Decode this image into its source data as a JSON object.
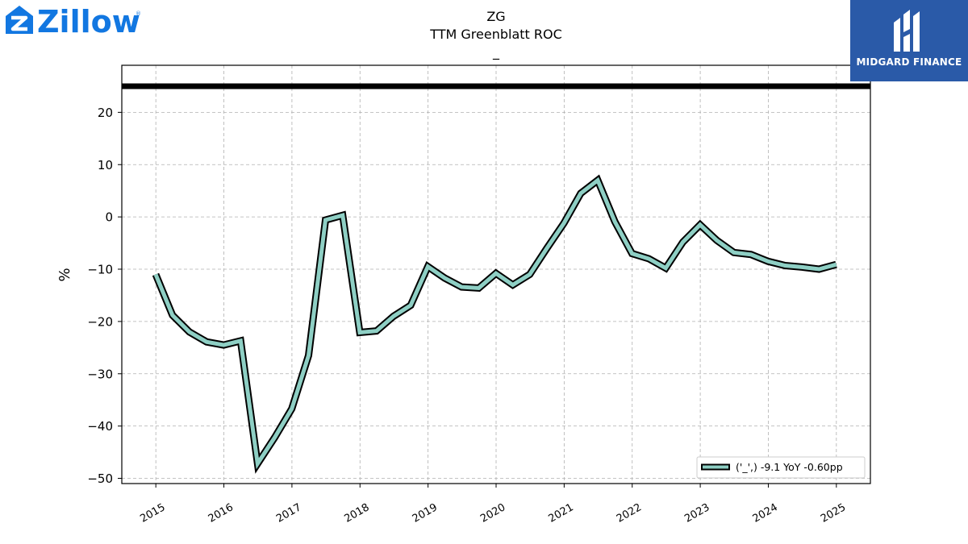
{
  "logos": {
    "left_brand": "Zillow",
    "right_brand": "MIDGARD FINANCE",
    "left_color": "#1277e1",
    "right_bg": "#2a5aa8"
  },
  "chart_data": {
    "type": "line",
    "title": "ZG",
    "subtitle": "TTM Greenblatt ROC",
    "subtitle2": "_",
    "xlabel": "",
    "ylabel": "%",
    "ylim": [
      -51,
      29
    ],
    "xlim": [
      2014.5,
      2025.5
    ],
    "yticks": [
      20,
      10,
      0,
      -10,
      -20,
      -30,
      -40,
      -50
    ],
    "ytick_labels": [
      "20",
      "10",
      "0",
      "−10",
      "−20",
      "−30",
      "−40",
      "−50"
    ],
    "xticks": [
      2015,
      2016,
      2017,
      2018,
      2019,
      2020,
      2021,
      2022,
      2023,
      2024,
      2025
    ],
    "xtick_labels": [
      "2015",
      "2016",
      "2017",
      "2018",
      "2019",
      "2020",
      "2021",
      "2022",
      "2023",
      "2024",
      "2025"
    ],
    "grid": true,
    "reference_line": 25,
    "legend_position": "lower-right",
    "colors": {
      "line": "#8ecfc4",
      "outline": "#000000",
      "grid": "#b0b0b0"
    },
    "series": [
      {
        "name": "('_',) -9.1 YoY -0.60pp",
        "x": [
          "2014-12-31",
          "2015-03-31",
          "2015-06-30",
          "2015-09-30",
          "2015-12-31",
          "2016-03-31",
          "2016-06-30",
          "2016-09-30",
          "2016-12-31",
          "2017-03-31",
          "2017-06-30",
          "2017-09-30",
          "2017-12-31",
          "2018-03-31",
          "2018-06-30",
          "2018-09-30",
          "2018-12-31",
          "2019-03-31",
          "2019-06-30",
          "2019-09-30",
          "2019-12-31",
          "2020-03-31",
          "2020-06-30",
          "2020-09-30",
          "2020-12-31",
          "2021-03-31",
          "2021-06-30",
          "2021-09-30",
          "2021-12-31",
          "2022-03-31",
          "2022-06-30",
          "2022-09-30",
          "2022-12-31",
          "2023-03-31",
          "2023-06-30",
          "2023-09-30",
          "2023-12-31",
          "2024-03-31",
          "2024-06-30",
          "2024-09-30",
          "2024-12-31"
        ],
        "values": [
          -11.0,
          -18.8,
          -22.0,
          -23.9,
          -24.5,
          -23.7,
          -47.2,
          -42.2,
          -36.7,
          -26.5,
          -0.6,
          0.3,
          -22.1,
          -21.8,
          -19.0,
          -16.9,
          -9.5,
          -11.7,
          -13.4,
          -13.6,
          -10.8,
          -13.0,
          -11.0,
          -6.0,
          -1.2,
          4.5,
          7.0,
          -0.9,
          -7.0,
          -8.0,
          -9.8,
          -4.8,
          -1.5,
          -4.5,
          -6.8,
          -7.2,
          -8.5,
          -9.3,
          -9.6,
          -10.0,
          -9.1
        ]
      }
    ]
  }
}
